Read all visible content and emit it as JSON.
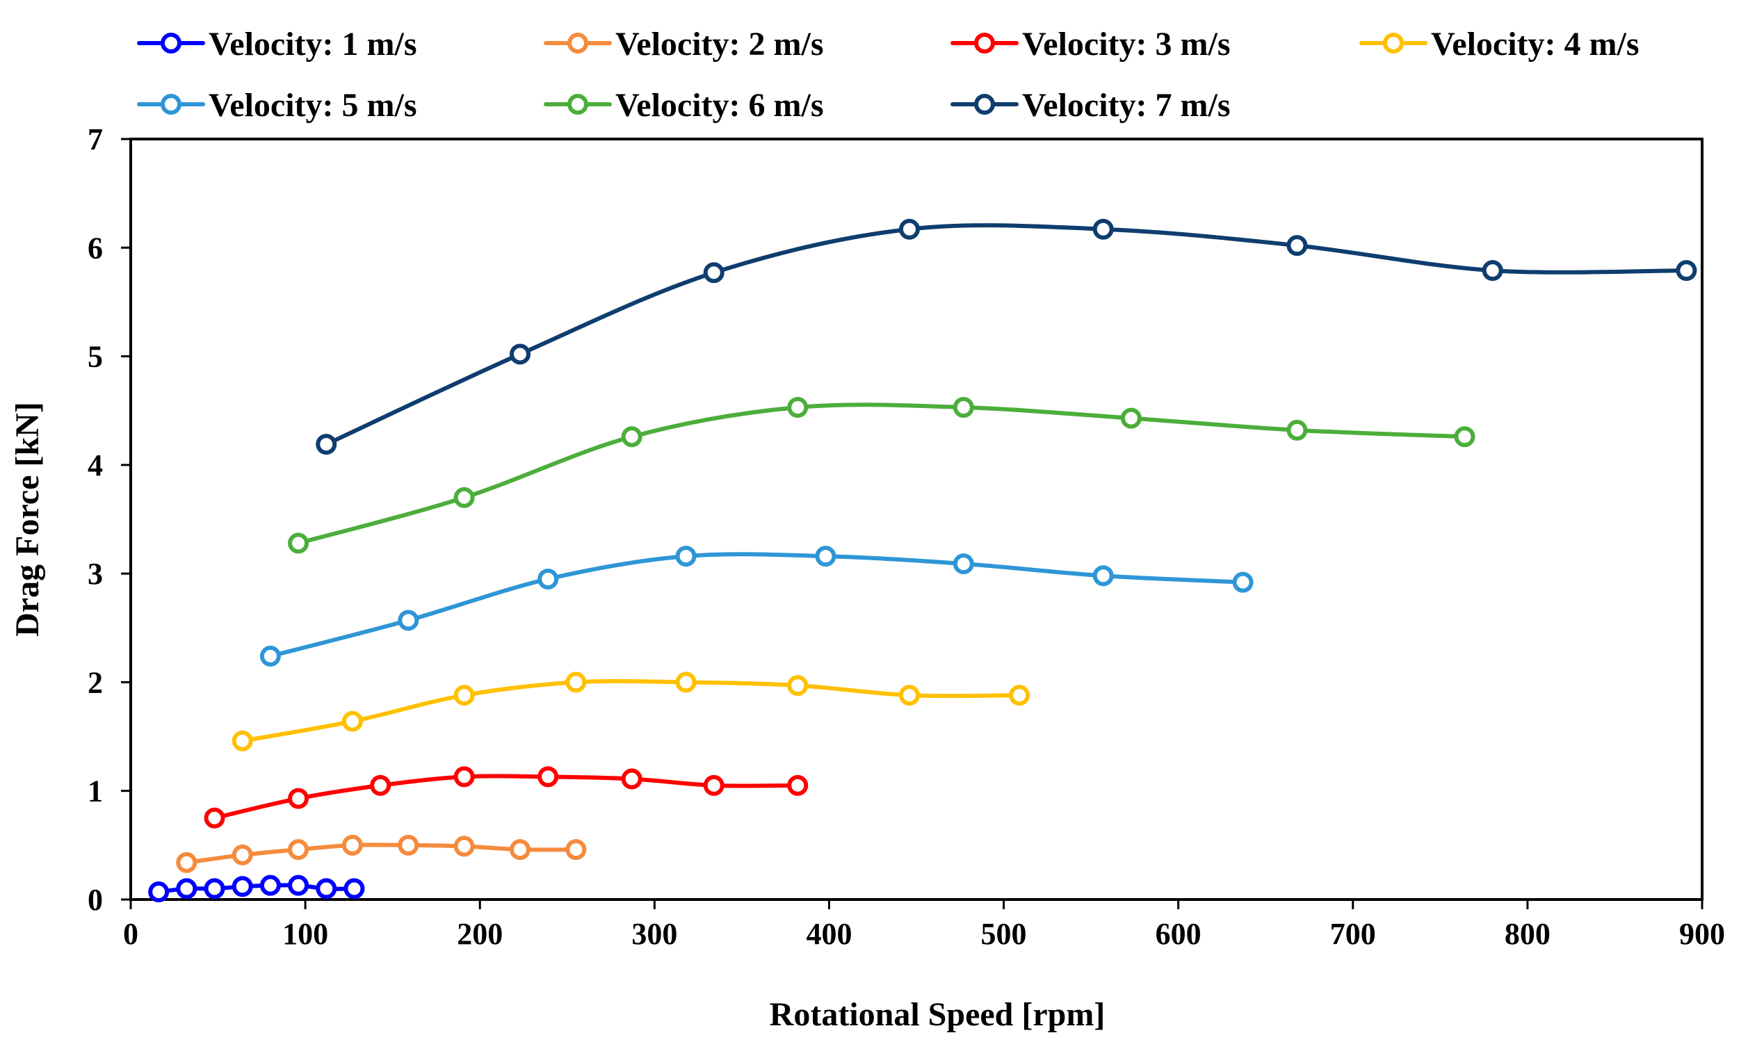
{
  "chart_data": {
    "type": "line",
    "title": "",
    "xlabel": "Rotational Speed [rpm]",
    "ylabel": "Drag Force [kN]",
    "xlim": [
      0,
      900
    ],
    "ylim": [
      0,
      7
    ],
    "xticks": [
      0,
      100,
      200,
      300,
      400,
      500,
      600,
      700,
      800,
      900
    ],
    "yticks": [
      0,
      1,
      2,
      3,
      4,
      5,
      6,
      7
    ],
    "xtick_labels": [
      "0",
      "100",
      "200",
      "300",
      "400",
      "500",
      "600",
      "700",
      "800",
      "900"
    ],
    "ytick_labels": [
      "0",
      "1",
      "2",
      "3",
      "4",
      "5",
      "6",
      "7"
    ],
    "grid": false,
    "legend_position": "top",
    "series": [
      {
        "name": "Velocity: 1 m/s",
        "color": "#0000FF",
        "x": [
          16,
          32,
          48,
          64,
          80,
          96,
          112,
          128
        ],
        "y": [
          0.07,
          0.1,
          0.1,
          0.12,
          0.13,
          0.13,
          0.1,
          0.1
        ]
      },
      {
        "name": "Velocity: 2 m/s",
        "color": "#F58B3C",
        "x": [
          32,
          64,
          96,
          127,
          159,
          191,
          223,
          255
        ],
        "y": [
          0.34,
          0.41,
          0.46,
          0.5,
          0.5,
          0.49,
          0.46,
          0.46
        ]
      },
      {
        "name": "Velocity: 3 m/s",
        "color": "#FF0000",
        "x": [
          48,
          96,
          143,
          191,
          239,
          287,
          334,
          382
        ],
        "y": [
          0.75,
          0.93,
          1.05,
          1.13,
          1.13,
          1.11,
          1.05,
          1.05
        ]
      },
      {
        "name": "Velocity: 4 m/s",
        "color": "#FFC000",
        "x": [
          64,
          127,
          191,
          255,
          318,
          382,
          446,
          509
        ],
        "y": [
          1.46,
          1.64,
          1.88,
          2.0,
          2.0,
          1.97,
          1.88,
          1.88
        ]
      },
      {
        "name": "Velocity: 5 m/s",
        "color": "#2E96D6",
        "x": [
          80,
          159,
          239,
          318,
          398,
          477,
          557,
          637
        ],
        "y": [
          2.24,
          2.57,
          2.95,
          3.16,
          3.16,
          3.09,
          2.98,
          2.92
        ]
      },
      {
        "name": "Velocity: 6 m/s",
        "color": "#4BAE3A",
        "x": [
          96,
          191,
          287,
          382,
          477,
          573,
          668,
          764
        ],
        "y": [
          3.28,
          3.7,
          4.26,
          4.53,
          4.53,
          4.43,
          4.32,
          4.26
        ]
      },
      {
        "name": "Velocity: 7 m/s",
        "color": "#0E3D6E",
        "x": [
          112,
          223,
          334,
          446,
          557,
          668,
          780,
          891
        ],
        "y": [
          4.19,
          5.02,
          5.77,
          6.17,
          6.17,
          6.02,
          5.79,
          5.79
        ]
      }
    ]
  }
}
